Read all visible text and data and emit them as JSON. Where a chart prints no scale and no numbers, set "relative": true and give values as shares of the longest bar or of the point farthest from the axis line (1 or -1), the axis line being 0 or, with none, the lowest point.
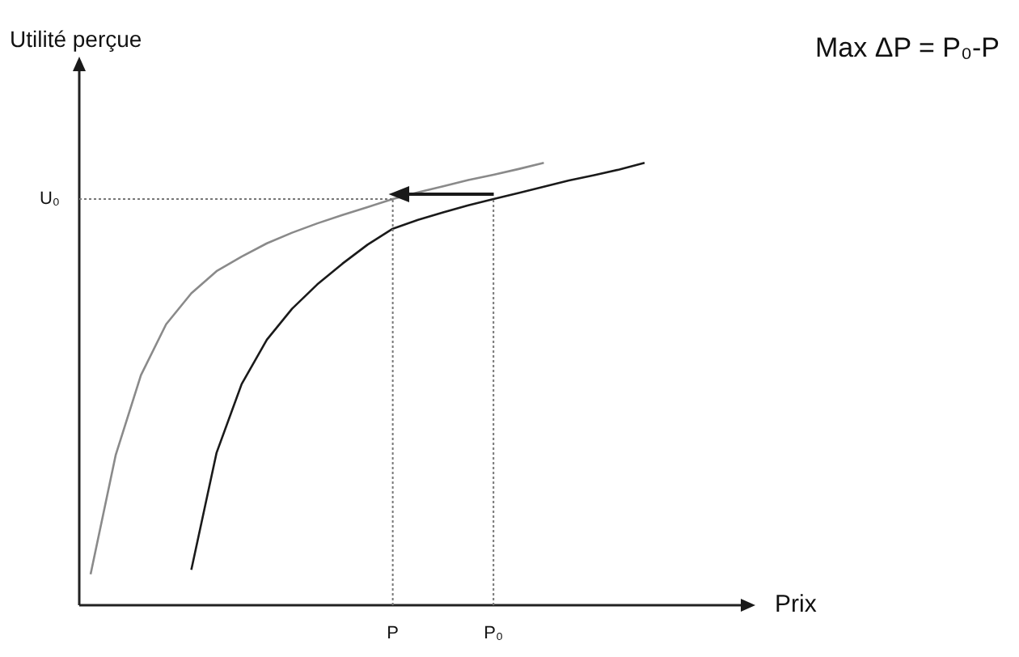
{
  "chart_data": {
    "type": "line",
    "relative": true,
    "ylabel": "Utilité perçue",
    "xlabel": "Prix",
    "annotations": [
      "Max ΔP = P₀-P"
    ],
    "categories": [
      null,
      null,
      null,
      null,
      null,
      null,
      null,
      null,
      null,
      null,
      null,
      null,
      "P",
      null,
      null,
      null,
      "P₀",
      null,
      null,
      null,
      null,
      null,
      null
    ],
    "legend": false,
    "marker": "none",
    "line_style": "solid",
    "series": [
      {
        "color": "#8a8a8a",
        "values": [
          0.07,
          0.34,
          0.52,
          0.635,
          0.705,
          0.755,
          0.788,
          0.818,
          0.842,
          0.863,
          0.882,
          0.9,
          0.918,
          0.933,
          0.947,
          0.961,
          0.973,
          0.986,
          1.0,
          null,
          null,
          null,
          null
        ]
      },
      {
        "color": "#1a1a1a",
        "values": [
          null,
          null,
          null,
          null,
          0.08,
          0.344,
          0.5,
          0.6,
          0.67,
          0.725,
          0.772,
          0.815,
          0.851,
          0.871,
          0.888,
          0.904,
          0.918,
          0.932,
          0.946,
          0.96,
          0.972,
          0.985,
          1.0
        ]
      }
    ],
    "ref_lines": [
      {
        "axis": "y",
        "value": 0.918,
        "label": "U₀",
        "line_style": "dotted"
      },
      {
        "axis": "x",
        "value": "P",
        "line_style": "dotted"
      },
      {
        "axis": "x",
        "value": "P₀",
        "line_style": "dotted"
      }
    ]
  }
}
